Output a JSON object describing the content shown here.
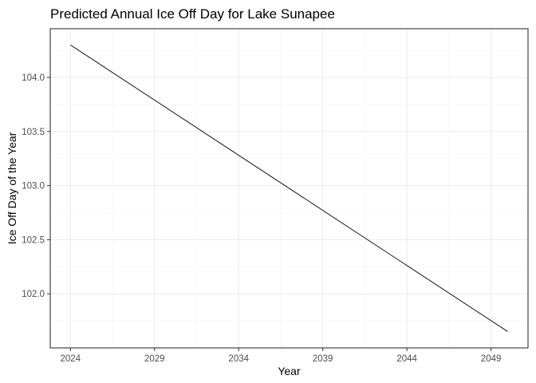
{
  "chart_data": {
    "type": "line",
    "title": "Predicted Annual Ice Off Day for Lake Sunapee",
    "xlabel": "Year",
    "ylabel": "Ice Off Day of the Year",
    "xlim": [
      2022.8,
      2051.2
    ],
    "ylim": [
      101.5,
      104.45
    ],
    "xticks": [
      2024,
      2029,
      2034,
      2039,
      2044,
      2049
    ],
    "yticks": [
      102.0,
      102.5,
      103.0,
      103.5,
      104.0
    ],
    "ytick_labels": [
      "102.0",
      "102.5",
      "103.0",
      "103.5",
      "104.0"
    ],
    "grid": true,
    "legend": "none",
    "series": [
      {
        "x": [
          2024,
          2050
        ],
        "y": [
          104.3,
          101.65
        ],
        "color": "#000000"
      }
    ]
  }
}
